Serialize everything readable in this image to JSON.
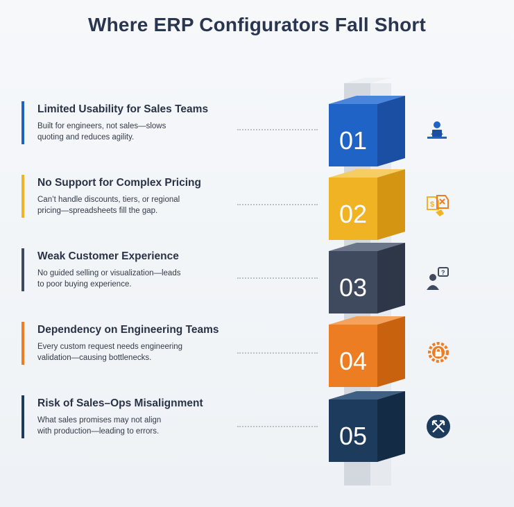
{
  "title": "Where ERP Configurators Fall Short",
  "items": [
    {
      "number": "01",
      "title": "Limited Usability for Sales Teams",
      "line1": "Built for engineers, not sales—slows",
      "line2": "quoting and reduces agility.",
      "color": "#1f63c6",
      "icon": "sales-rep-desk-icon"
    },
    {
      "number": "02",
      "title": "No Support for Complex Pricing",
      "line1": "Can’t handle discounts, tiers, or regional",
      "line2": "pricing—spreadsheets fill the gap.",
      "color": "#f0b323",
      "icon": "price-tags-icon"
    },
    {
      "number": "03",
      "title": "Weak Customer Experience",
      "line1": "No guided selling or visualization—leads",
      "line2": "to poor buying experience.",
      "color": "#3f4a5f",
      "icon": "customer-question-icon"
    },
    {
      "number": "04",
      "title": "Dependency on Engineering Teams",
      "line1": "Every custom request needs engineering",
      "line2": "validation—causing bottlenecks.",
      "color": "#ed7d22",
      "icon": "gear-lock-icon"
    },
    {
      "number": "05",
      "title": "Risk of Sales–Ops Misalignment",
      "line1": "What sales promises may not align",
      "line2": "with production—leading to errors.",
      "color": "#1d3b5c",
      "icon": "diverging-arrows-icon"
    }
  ]
}
